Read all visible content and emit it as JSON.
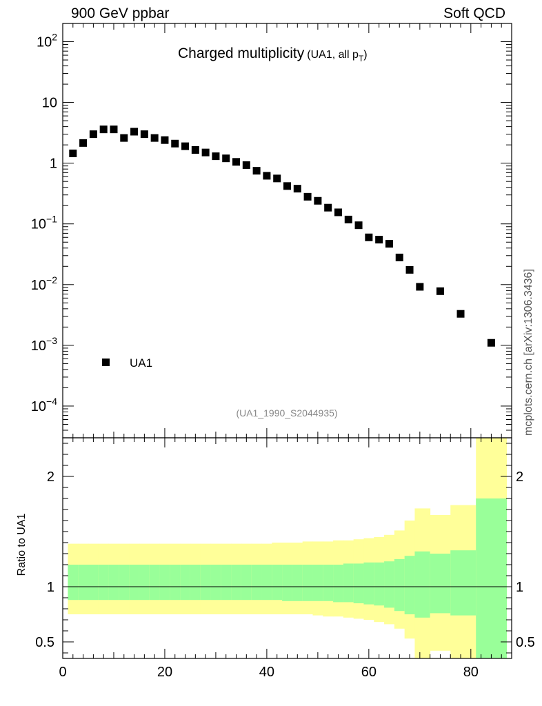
{
  "header": {
    "left": "900 GeV ppbar",
    "right": "Soft QCD"
  },
  "side_label": "mcplots.cern.ch [arXiv:1306.3436]",
  "chart_data": {
    "type": "scatter",
    "title": "Charged multiplicity",
    "title_suffix": "(UA1, all p",
    "title_suffix_sub": "T",
    "title_suffix_end": ")",
    "reference": "(UA1_1990_S2044935)",
    "xlim": [
      0,
      88
    ],
    "x_ticks": [
      0,
      20,
      40,
      60,
      80
    ],
    "upper": {
      "yscale": "log",
      "ylim": [
        3e-05,
        200
      ],
      "y_tick_labels": [
        {
          "value": 100,
          "base": "10",
          "exp": "2"
        },
        {
          "value": 10,
          "base": "10",
          "exp": ""
        },
        {
          "value": 1,
          "base": "1",
          "exp": ""
        },
        {
          "value": 0.1,
          "base": "10",
          "exp": "−1"
        },
        {
          "value": 0.01,
          "base": "10",
          "exp": "−2"
        },
        {
          "value": 0.001,
          "base": "10",
          "exp": "−3"
        },
        {
          "value": 0.0001,
          "base": "10",
          "exp": "−4"
        }
      ],
      "series": [
        {
          "name": "UA1",
          "color": "#000000",
          "marker": "square",
          "x": [
            2,
            4,
            6,
            8,
            10,
            12,
            14,
            16,
            18,
            20,
            22,
            24,
            26,
            28,
            30,
            32,
            34,
            36,
            38,
            40,
            42,
            44,
            46,
            48,
            50,
            52,
            54,
            56,
            58,
            60,
            62,
            64,
            66,
            68,
            70,
            74,
            78,
            84
          ],
          "y": [
            1.45,
            2.15,
            3.0,
            3.6,
            3.6,
            2.6,
            3.3,
            3.0,
            2.6,
            2.4,
            2.1,
            1.9,
            1.65,
            1.5,
            1.3,
            1.2,
            1.05,
            0.93,
            0.75,
            0.62,
            0.56,
            0.42,
            0.38,
            0.28,
            0.24,
            0.185,
            0.155,
            0.118,
            0.095,
            0.06,
            0.055,
            0.047,
            0.028,
            0.0175,
            0.0092,
            0.0078,
            0.0033,
            0.0011
          ]
        }
      ],
      "legend": {
        "position": "bottom-left",
        "entries": [
          "UA1"
        ]
      }
    },
    "lower": {
      "ylabel": "Ratio to UA1",
      "ylim": [
        0.35,
        2.35
      ],
      "y_tick_labels": [
        {
          "value": 2,
          "label": "2"
        },
        {
          "value": 1,
          "label": "1"
        },
        {
          "value": 0.5,
          "label": "0.5"
        }
      ],
      "reference_line": 1,
      "bands": {
        "edges": [
          1,
          3,
          5,
          7,
          9,
          11,
          13,
          15,
          17,
          19,
          21,
          23,
          25,
          27,
          29,
          31,
          33,
          35,
          37,
          39,
          41,
          43,
          45,
          47,
          49,
          51,
          53,
          55,
          57,
          59,
          61,
          63,
          65,
          67,
          69,
          72,
          76,
          81,
          87
        ],
        "green_color": "#99ff99",
        "yellow_color": "#ffff99",
        "green_upper": [
          1.2,
          1.2,
          1.2,
          1.2,
          1.2,
          1.2,
          1.2,
          1.2,
          1.2,
          1.2,
          1.2,
          1.2,
          1.2,
          1.2,
          1.2,
          1.2,
          1.2,
          1.2,
          1.2,
          1.2,
          1.2,
          1.2,
          1.2,
          1.2,
          1.2,
          1.2,
          1.2,
          1.21,
          1.21,
          1.22,
          1.22,
          1.23,
          1.25,
          1.28,
          1.32,
          1.3,
          1.33,
          1.8
        ],
        "green_lower": [
          0.88,
          0.88,
          0.88,
          0.88,
          0.88,
          0.88,
          0.88,
          0.88,
          0.88,
          0.88,
          0.88,
          0.88,
          0.88,
          0.88,
          0.88,
          0.88,
          0.88,
          0.88,
          0.88,
          0.88,
          0.88,
          0.87,
          0.87,
          0.87,
          0.87,
          0.87,
          0.86,
          0.86,
          0.85,
          0.84,
          0.83,
          0.81,
          0.78,
          0.75,
          0.72,
          0.76,
          0.74,
          0.35
        ],
        "yellow_upper": [
          1.39,
          1.39,
          1.39,
          1.39,
          1.39,
          1.39,
          1.39,
          1.39,
          1.39,
          1.39,
          1.39,
          1.39,
          1.39,
          1.39,
          1.39,
          1.39,
          1.39,
          1.39,
          1.39,
          1.39,
          1.4,
          1.4,
          1.4,
          1.41,
          1.41,
          1.41,
          1.42,
          1.42,
          1.43,
          1.44,
          1.45,
          1.47,
          1.51,
          1.6,
          1.71,
          1.65,
          1.74,
          2.35
        ],
        "yellow_lower": [
          0.75,
          0.75,
          0.75,
          0.75,
          0.75,
          0.75,
          0.75,
          0.75,
          0.75,
          0.75,
          0.75,
          0.75,
          0.75,
          0.75,
          0.75,
          0.75,
          0.75,
          0.75,
          0.75,
          0.75,
          0.75,
          0.75,
          0.75,
          0.75,
          0.74,
          0.73,
          0.73,
          0.72,
          0.71,
          0.7,
          0.68,
          0.66,
          0.62,
          0.53,
          0.35,
          0.42,
          0.35,
          0.35
        ]
      }
    }
  }
}
